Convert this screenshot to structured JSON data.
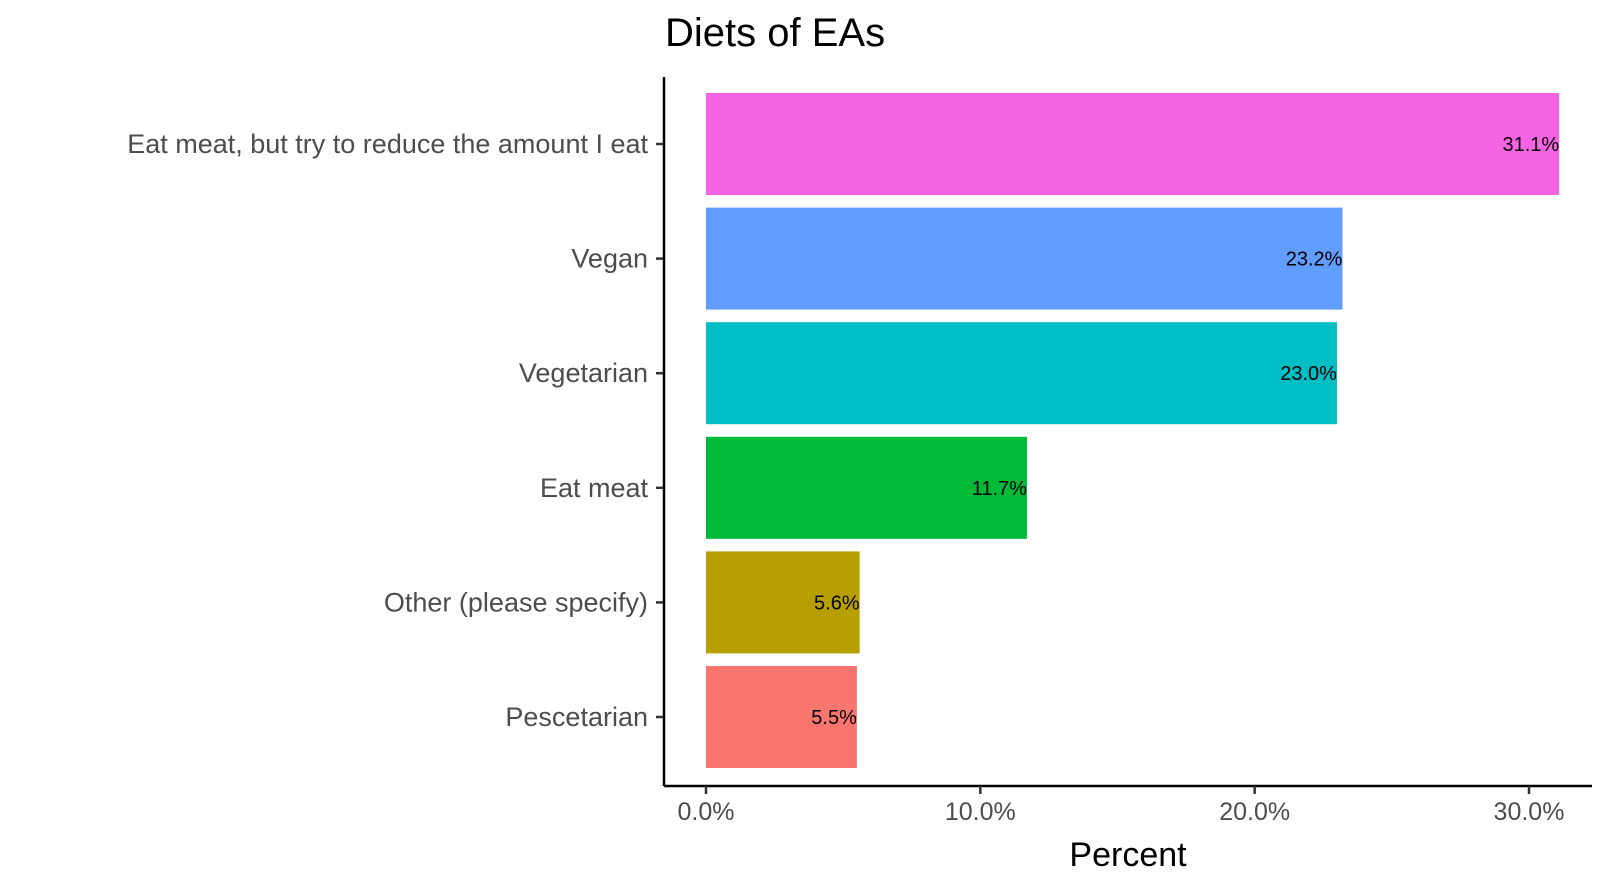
{
  "chart_data": {
    "type": "bar",
    "orientation": "horizontal",
    "title": "Diets of EAs",
    "xlabel": "Percent",
    "ylabel": "",
    "xlim": [
      0,
      32
    ],
    "x_ticks": [
      0,
      10,
      20,
      30
    ],
    "x_tick_labels": [
      "0.0%",
      "10.0%",
      "20.0%",
      "30.0%"
    ],
    "grid": false,
    "legend": "none",
    "categories": [
      "Eat meat, but try to reduce the amount I eat",
      "Vegan",
      "Vegetarian",
      "Eat meat",
      "Other (please specify)",
      "Pescetarian"
    ],
    "values": [
      31.1,
      23.2,
      23.0,
      11.7,
      5.6,
      5.5
    ],
    "value_labels": [
      "31.1%",
      "23.2%",
      "23.0%",
      "11.7%",
      "5.6%",
      "5.5%"
    ],
    "colors": [
      "#F564E3",
      "#619CFF",
      "#00BFC4",
      "#00BA38",
      "#B79F00",
      "#F8766D"
    ]
  }
}
